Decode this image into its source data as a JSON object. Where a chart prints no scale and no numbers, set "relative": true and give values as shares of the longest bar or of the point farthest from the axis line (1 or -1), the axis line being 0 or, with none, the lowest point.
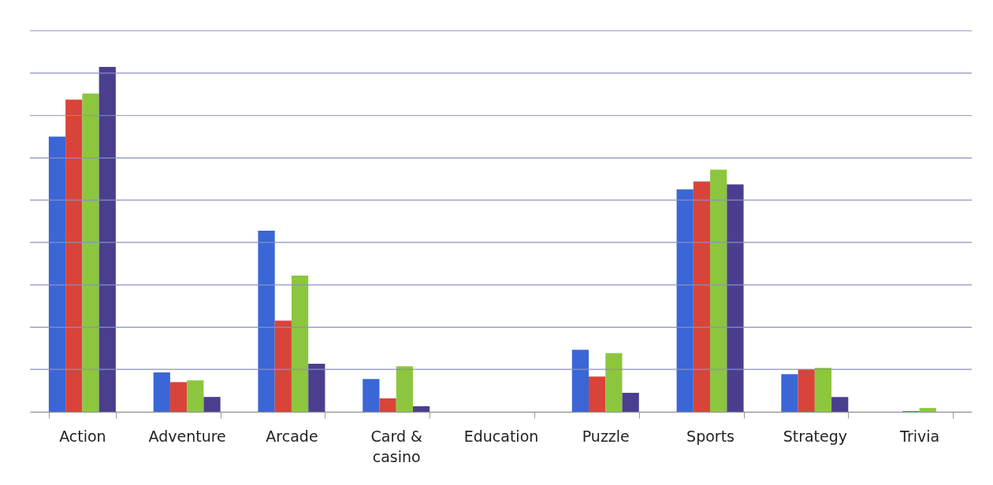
{
  "chart_data": {
    "type": "bar",
    "relative": true,
    "legend": false,
    "ref_lines": [
      {
        "axis": "y",
        "value": 0.123,
        "color": "#8a8fc0"
      },
      {
        "axis": "y",
        "value": 0.245,
        "color": "#8a8fc0"
      },
      {
        "axis": "y",
        "value": 0.368,
        "color": "#8a8fc0"
      },
      {
        "axis": "y",
        "value": 0.491,
        "color": "#8a8fc0"
      },
      {
        "axis": "y",
        "value": 0.614,
        "color": "#8a8fc0"
      },
      {
        "axis": "y",
        "value": 0.736,
        "color": "#8a8fc0"
      },
      {
        "axis": "y",
        "value": 0.859,
        "color": "#8a8fc0"
      },
      {
        "axis": "y",
        "value": 0.982,
        "color": "#8a8fc0"
      },
      {
        "axis": "y",
        "value": 1.105,
        "color": "#8a8fc0"
      }
    ],
    "categories": [
      "Action",
      "Adventure",
      "Arcade",
      "Card & casino",
      "Education",
      "Puzzle",
      "Sports",
      "Strategy",
      "Trivia"
    ],
    "series": [
      {
        "color": "#3a66d6",
        "values": [
          0.798,
          0.114,
          0.525,
          0.095,
          0,
          0.18,
          0.645,
          0.109,
          0
        ]
      },
      {
        "color": "#d9443a",
        "values": [
          0.905,
          0.086,
          0.264,
          0.039,
          0,
          0.102,
          0.668,
          0.123,
          0.002
        ]
      },
      {
        "color": "#8cc63f",
        "values": [
          0.923,
          0.091,
          0.395,
          0.132,
          0,
          0.17,
          0.702,
          0.127,
          0.011
        ]
      },
      {
        "color": "#4a3f8f",
        "values": [
          1,
          0.043,
          0.139,
          0.016,
          0,
          0.055,
          0.659,
          0.043,
          0
        ]
      }
    ]
  }
}
